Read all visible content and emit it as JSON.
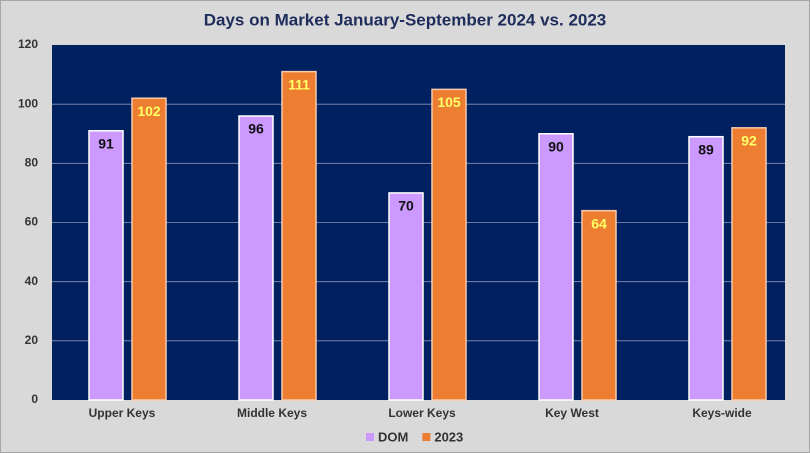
{
  "chart_data": {
    "type": "bar",
    "title": "Days on Market January-September 2024 vs. 2023",
    "categories": [
      "Upper Keys",
      "Middle Keys",
      "Lower Keys",
      "Key West",
      "Keys-wide"
    ],
    "series": [
      {
        "name": "DOM",
        "color": "#cc99ff",
        "values": [
          91,
          96,
          70,
          90,
          89
        ]
      },
      {
        "name": "2023",
        "color": "#ed7d31",
        "values": [
          102,
          111,
          105,
          64,
          92
        ]
      }
    ],
    "ylim": [
      0,
      120
    ],
    "yticks": [
      0,
      20,
      40,
      60,
      80,
      100,
      120
    ],
    "grid": true,
    "legend": "bottom"
  }
}
